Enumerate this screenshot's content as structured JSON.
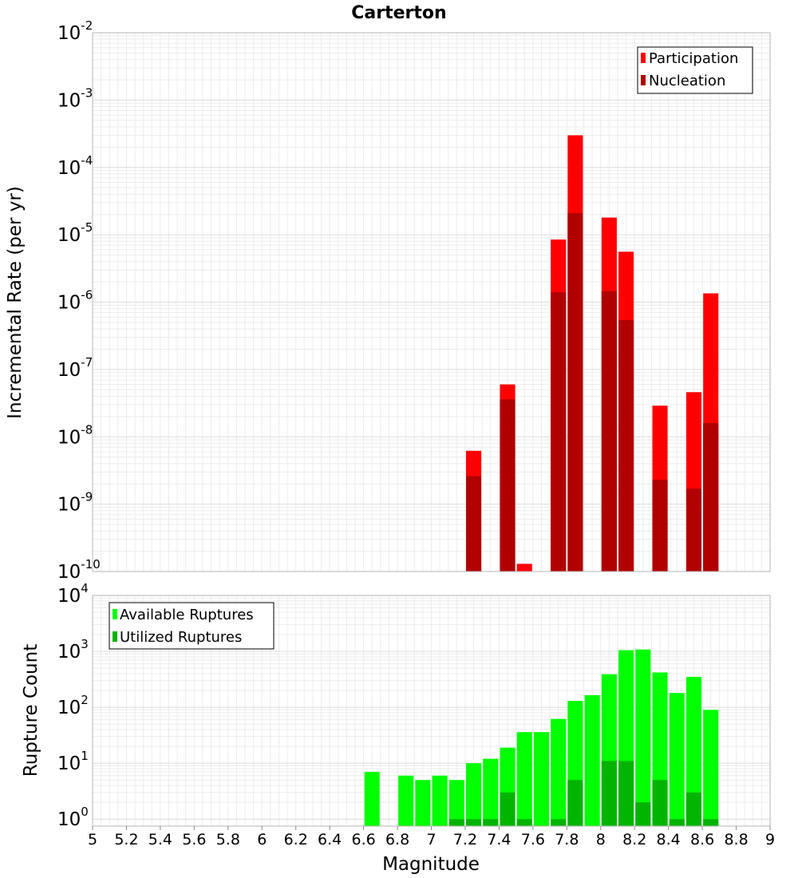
{
  "chart_data": [
    {
      "type": "bar",
      "title": "Carterton",
      "xlabel": "",
      "ylabel": "Incremental Rate (per yr)",
      "yscale": "log",
      "ylim": [
        1e-10,
        0.01
      ],
      "xlim": [
        5,
        9
      ],
      "grid": true,
      "legend_position": "top-right",
      "series": [
        {
          "name": "Participation",
          "color": "#ff0000",
          "x": [
            7.25,
            7.45,
            7.55,
            7.75,
            7.85,
            8.05,
            8.15,
            8.35,
            8.55,
            8.65
          ],
          "values": [
            6.2e-09,
            6e-08,
            1.3e-10,
            8.5e-06,
            0.0003,
            1.8e-05,
            5.6e-06,
            2.9e-08,
            4.6e-08,
            1.35e-06
          ]
        },
        {
          "name": "Nucleation",
          "color": "#b00000",
          "x": [
            7.25,
            7.45,
            7.75,
            7.85,
            8.05,
            8.15,
            8.35,
            8.55,
            8.65
          ],
          "values": [
            2.6e-09,
            3.6e-08,
            1.4e-06,
            2.1e-05,
            1.45e-06,
            5.4e-07,
            2.3e-09,
            1.7e-09,
            1.6e-08
          ]
        }
      ]
    },
    {
      "type": "bar",
      "title": "",
      "xlabel": "Magnitude",
      "ylabel": "Rupture Count",
      "yscale": "log",
      "ylim": [
        0.75,
        10000
      ],
      "xlim": [
        5,
        9
      ],
      "grid": true,
      "legend_position": "top-left",
      "x_ticks": [
        "5",
        "5.2",
        "5.4",
        "5.6",
        "5.8",
        "6",
        "6.2",
        "6.4",
        "6.6",
        "6.8",
        "7",
        "7.2",
        "7.4",
        "7.6",
        "7.8",
        "8",
        "8.2",
        "8.4",
        "8.6",
        "8.8",
        "9"
      ],
      "series": [
        {
          "name": "Available Ruptures",
          "color": "#00ff00",
          "x": [
            6.65,
            6.85,
            6.95,
            7.05,
            7.15,
            7.25,
            7.35,
            7.45,
            7.55,
            7.65,
            7.75,
            7.85,
            7.95,
            8.05,
            8.15,
            8.25,
            8.35,
            8.45,
            8.55,
            8.65
          ],
          "values": [
            7,
            6,
            5,
            6,
            5,
            10,
            12,
            19,
            36,
            36,
            62,
            130,
            165,
            390,
            1050,
            1080,
            420,
            180,
            350,
            90
          ]
        },
        {
          "name": "Utilized Ruptures",
          "color": "#00b400",
          "x": [
            7.15,
            7.25,
            7.35,
            7.45,
            7.55,
            7.75,
            7.85,
            8.05,
            8.15,
            8.25,
            8.35,
            8.45,
            8.55,
            8.65
          ],
          "values": [
            1,
            1,
            1,
            3,
            1,
            1,
            5,
            11,
            11,
            2,
            5,
            1,
            3,
            1
          ]
        }
      ]
    }
  ]
}
